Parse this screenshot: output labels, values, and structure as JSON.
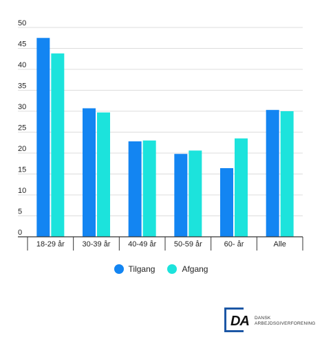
{
  "chart_data": {
    "type": "bar",
    "categories": [
      "18-29 år",
      "30-39 år",
      "40-49 år",
      "50-59 år",
      "60- år",
      "Alle"
    ],
    "series": [
      {
        "name": "Tilgang",
        "color": "#1385f2",
        "values": [
          47.5,
          30.7,
          22.8,
          19.8,
          16.4,
          30.3
        ]
      },
      {
        "name": "Afgang",
        "color": "#1ce3dc",
        "values": [
          43.8,
          29.7,
          23.0,
          20.6,
          23.5,
          30.0
        ]
      }
    ],
    "ylim": [
      0,
      50
    ],
    "yticks": [
      0,
      5,
      10,
      15,
      20,
      25,
      30,
      35,
      40,
      45,
      50
    ],
    "grid": true,
    "legend_position": "bottom",
    "title": "",
    "xlabel": "",
    "ylabel": ""
  },
  "legend": {
    "tilgang_label": "Tilgang",
    "afgang_label": "Afgang"
  },
  "logo": {
    "letters": "DA",
    "line1": "DANSK",
    "line2": "ARBEJDSGIVERFORENING",
    "color": "#1c57a5"
  }
}
